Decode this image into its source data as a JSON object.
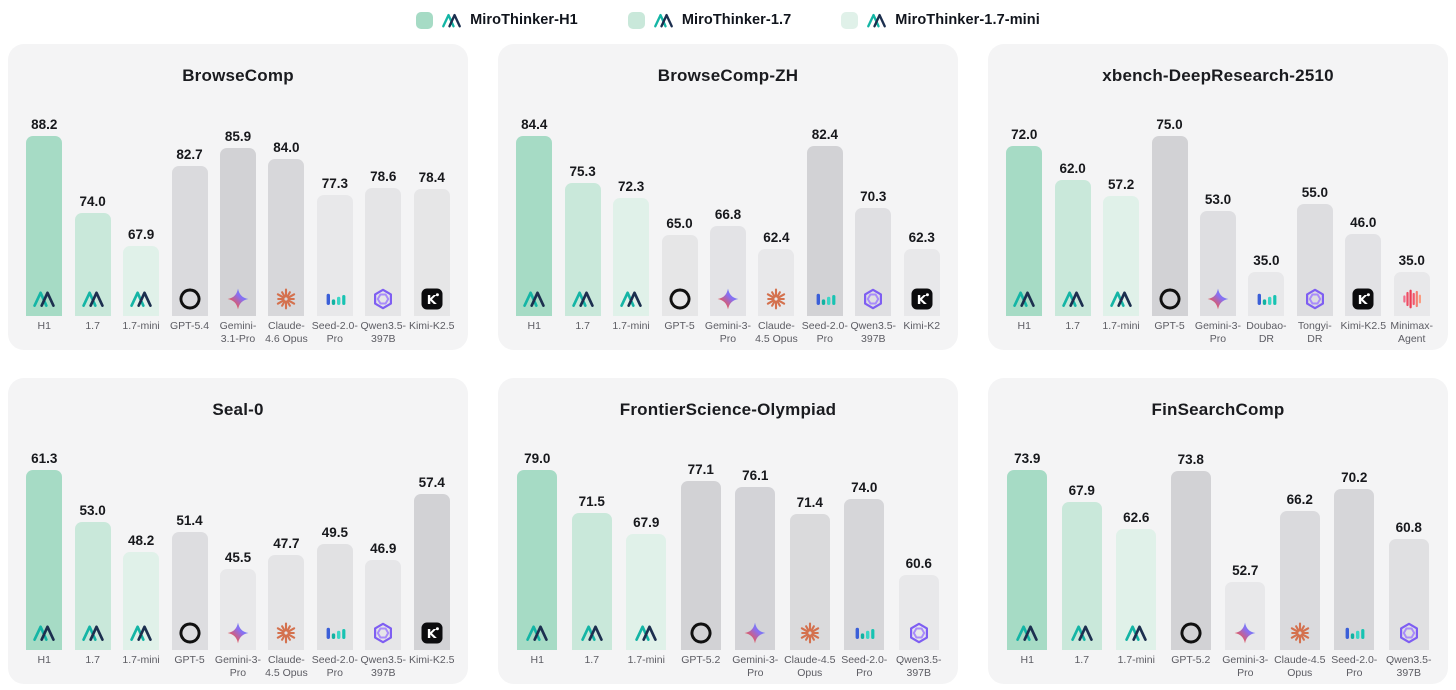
{
  "legend": {
    "items": [
      {
        "label": "MiroThinker-H1",
        "swatch": "#a6dbc5"
      },
      {
        "label": "MiroThinker-1.7",
        "swatch": "#c9e8da"
      },
      {
        "label": "MiroThinker-1.7-mini",
        "swatch": "#e0f1e9"
      }
    ]
  },
  "colors": {
    "series": {
      "h1": "#a6dbc5",
      "v17": "#c9e8da",
      "mini": "#e0f1e9"
    },
    "card_bg": "#f4f4f5",
    "value_text": "#17181c",
    "label_text": "#5c5c63",
    "miro_teal": "#14b5a5",
    "miro_navy": "#1c2f4f"
  },
  "chart_data": [
    {
      "type": "bar",
      "title": "BrowseComp",
      "categories": [
        "H1",
        "1.7",
        "1.7-mini",
        "GPT-5.4",
        "Gemini-3.1-Pro",
        "Claude-4.6 Opus",
        "Seed-2.0-Pro",
        "Qwen3.5-397B",
        "Kimi-K2.5"
      ],
      "values": [
        88.2,
        74.0,
        67.9,
        82.7,
        85.9,
        84.0,
        77.3,
        78.6,
        78.4
      ],
      "series_group": [
        "h1",
        "v17",
        "mini",
        "gray",
        "gray",
        "gray",
        "gray",
        "gray",
        "gray"
      ],
      "icons": [
        "mirothinker-icon",
        "mirothinker-icon",
        "mirothinker-icon",
        "openai-icon",
        "gemini-icon",
        "claude-icon",
        "seed-icon",
        "qwen-icon",
        "kimi-icon"
      ],
      "ylabel": "",
      "xlabel": "",
      "grid": false,
      "legend_position": "none"
    },
    {
      "type": "bar",
      "title": "BrowseComp-ZH",
      "categories": [
        "H1",
        "1.7",
        "1.7-mini",
        "GPT-5",
        "Gemini-3-Pro",
        "Claude-4.5 Opus",
        "Seed-2.0-Pro",
        "Qwen3.5-397B",
        "Kimi-K2"
      ],
      "values": [
        84.4,
        75.3,
        72.3,
        65.0,
        66.8,
        62.4,
        82.4,
        70.3,
        62.3
      ],
      "series_group": [
        "h1",
        "v17",
        "mini",
        "gray",
        "gray",
        "gray",
        "gray",
        "gray",
        "gray"
      ],
      "icons": [
        "mirothinker-icon",
        "mirothinker-icon",
        "mirothinker-icon",
        "openai-icon",
        "gemini-icon",
        "claude-icon",
        "seed-icon",
        "qwen-icon",
        "kimi-icon"
      ],
      "ylabel": "",
      "xlabel": "",
      "grid": false,
      "legend_position": "none"
    },
    {
      "type": "bar",
      "title": "xbench-DeepResearch-2510",
      "categories": [
        "H1",
        "1.7",
        "1.7-mini",
        "GPT-5",
        "Gemini-3-Pro",
        "Doubao-DR",
        "Tongyi-DR",
        "Kimi-K2.5",
        "Minimax-Agent"
      ],
      "values": [
        72.0,
        62.0,
        57.2,
        75.0,
        53.0,
        35.0,
        55.0,
        46.0,
        35.0
      ],
      "series_group": [
        "h1",
        "v17",
        "mini",
        "gray",
        "gray",
        "gray",
        "gray",
        "gray",
        "gray"
      ],
      "icons": [
        "mirothinker-icon",
        "mirothinker-icon",
        "mirothinker-icon",
        "openai-icon",
        "gemini-icon",
        "seed-icon",
        "qwen-icon",
        "kimi-icon",
        "minimax-icon"
      ],
      "ylabel": "",
      "xlabel": "",
      "grid": false,
      "legend_position": "none"
    },
    {
      "type": "bar",
      "title": "Seal-0",
      "categories": [
        "H1",
        "1.7",
        "1.7-mini",
        "GPT-5",
        "Gemini-3-Pro",
        "Claude-4.5 Opus",
        "Seed-2.0-Pro",
        "Qwen3.5-397B",
        "Kimi-K2.5"
      ],
      "values": [
        61.3,
        53.0,
        48.2,
        51.4,
        45.5,
        47.7,
        49.5,
        46.9,
        57.4
      ],
      "series_group": [
        "h1",
        "v17",
        "mini",
        "gray",
        "gray",
        "gray",
        "gray",
        "gray",
        "gray"
      ],
      "icons": [
        "mirothinker-icon",
        "mirothinker-icon",
        "mirothinker-icon",
        "openai-icon",
        "gemini-icon",
        "claude-icon",
        "seed-icon",
        "qwen-icon",
        "kimi-icon"
      ],
      "ylabel": "",
      "xlabel": "",
      "grid": false,
      "legend_position": "none"
    },
    {
      "type": "bar",
      "title": "FrontierScience-Olympiad",
      "categories": [
        "H1",
        "1.7",
        "1.7-mini",
        "GPT-5.2",
        "Gemini-3-Pro",
        "Claude-4.5 Opus",
        "Seed-2.0-Pro",
        "Qwen3.5-397B"
      ],
      "values": [
        79.0,
        71.5,
        67.9,
        77.1,
        76.1,
        71.4,
        74.0,
        60.6
      ],
      "series_group": [
        "h1",
        "v17",
        "mini",
        "gray",
        "gray",
        "gray",
        "gray",
        "gray"
      ],
      "icons": [
        "mirothinker-icon",
        "mirothinker-icon",
        "mirothinker-icon",
        "openai-icon",
        "gemini-icon",
        "claude-icon",
        "seed-icon",
        "qwen-icon"
      ],
      "ylabel": "",
      "xlabel": "",
      "grid": false,
      "legend_position": "none"
    },
    {
      "type": "bar",
      "title": "FinSearchComp",
      "categories": [
        "H1",
        "1.7",
        "1.7-mini",
        "GPT-5.2",
        "Gemini-3-Pro",
        "Claude-4.5 Opus",
        "Seed-2.0-Pro",
        "Qwen3.5-397B"
      ],
      "values": [
        73.9,
        67.9,
        62.6,
        73.8,
        52.7,
        66.2,
        70.2,
        60.8
      ],
      "series_group": [
        "h1",
        "v17",
        "mini",
        "gray",
        "gray",
        "gray",
        "gray",
        "gray"
      ],
      "icons": [
        "mirothinker-icon",
        "mirothinker-icon",
        "mirothinker-icon",
        "openai-icon",
        "gemini-icon",
        "claude-icon",
        "seed-icon",
        "qwen-icon"
      ],
      "ylabel": "",
      "xlabel": "",
      "grid": false,
      "legend_position": "none"
    }
  ]
}
